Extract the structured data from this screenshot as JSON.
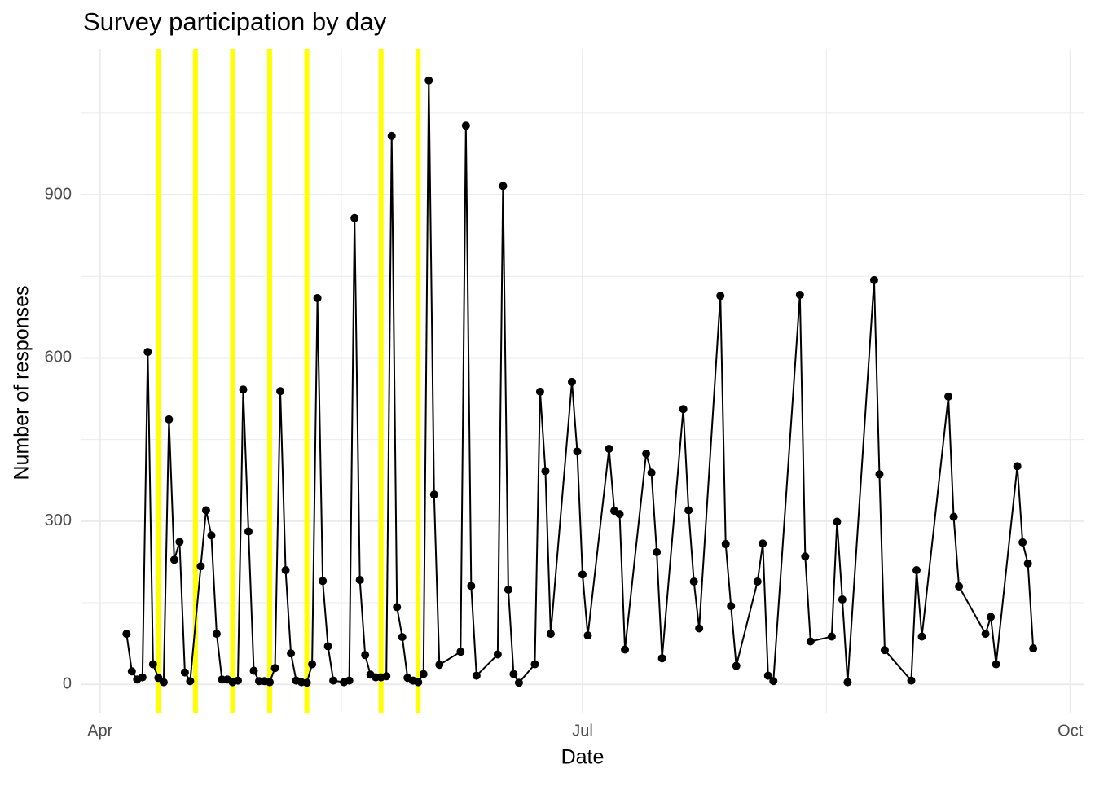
{
  "chart_data": {
    "type": "line",
    "title": "Survey participation by day",
    "x_label": "Date",
    "y_label": "Number of responses",
    "x": [
      5,
      6,
      7,
      8,
      9,
      10,
      11,
      12,
      13,
      14,
      15,
      16,
      17,
      19,
      20,
      21,
      22,
      23,
      24,
      25,
      26,
      27,
      28,
      29,
      30,
      31,
      32,
      33,
      34,
      35,
      36,
      37,
      38,
      39,
      40,
      41,
      42,
      43,
      44,
      46,
      47,
      48,
      49,
      50,
      51,
      52,
      53,
      54,
      55,
      56,
      57,
      58,
      59,
      60,
      61,
      62,
      63,
      64,
      68,
      69,
      70,
      71,
      75,
      76,
      77,
      78,
      79,
      82,
      83,
      84,
      85,
      89,
      90,
      91,
      92,
      96,
      97,
      98,
      99,
      103,
      104,
      105,
      106,
      110,
      111,
      112,
      113,
      117,
      118,
      119,
      120,
      124,
      125,
      126,
      127,
      132,
      133,
      134,
      138,
      139,
      140,
      141,
      146,
      147,
      148,
      153,
      154,
      155,
      160,
      161,
      162,
      167,
      168,
      169,
      173,
      174,
      175,
      176
    ],
    "series": [
      {
        "name": "responses",
        "color": "#000000",
        "values": [
          93,
          24,
          9,
          13,
          611,
          37,
          12,
          4,
          487,
          229,
          262,
          22,
          6,
          217,
          320,
          274,
          93,
          9,
          9,
          4,
          7,
          542,
          281,
          25,
          6,
          6,
          4,
          30,
          539,
          210,
          57,
          7,
          4,
          3,
          37,
          710,
          190,
          70,
          7,
          4,
          7,
          857,
          192,
          54,
          18,
          13,
          13,
          15,
          1008,
          142,
          87,
          12,
          7,
          4,
          19,
          1110,
          349,
          36,
          60,
          1027,
          181,
          16,
          55,
          916,
          174,
          19,
          3,
          37,
          538,
          392,
          93,
          556,
          428,
          202,
          90,
          433,
          319,
          313,
          64,
          424,
          389,
          243,
          48,
          506,
          320,
          189,
          103,
          714,
          258,
          144,
          34,
          189,
          259,
          16,
          6,
          716,
          235,
          79,
          88,
          299,
          156,
          4,
          743,
          386,
          63,
          7,
          210,
          88,
          529,
          308,
          180,
          93,
          124,
          37,
          401,
          261,
          222,
          66
        ]
      }
    ],
    "vlines": [
      11,
      18,
      25,
      32,
      39,
      53,
      60
    ],
    "vline_color": "#ffff00",
    "xlim": [
      -3.5,
      185.5
    ],
    "xticks": [
      {
        "value": 0,
        "label": "Apr"
      },
      {
        "value": 91,
        "label": "Jul"
      },
      {
        "value": 183,
        "label": "Oct"
      }
    ],
    "xminorticks": [
      45.5,
      137
    ],
    "ylim": [
      -52,
      1168
    ],
    "yticks": [
      0,
      300,
      600,
      900
    ],
    "yminorticks": [
      150,
      450,
      750,
      1050
    ],
    "grid": true
  }
}
